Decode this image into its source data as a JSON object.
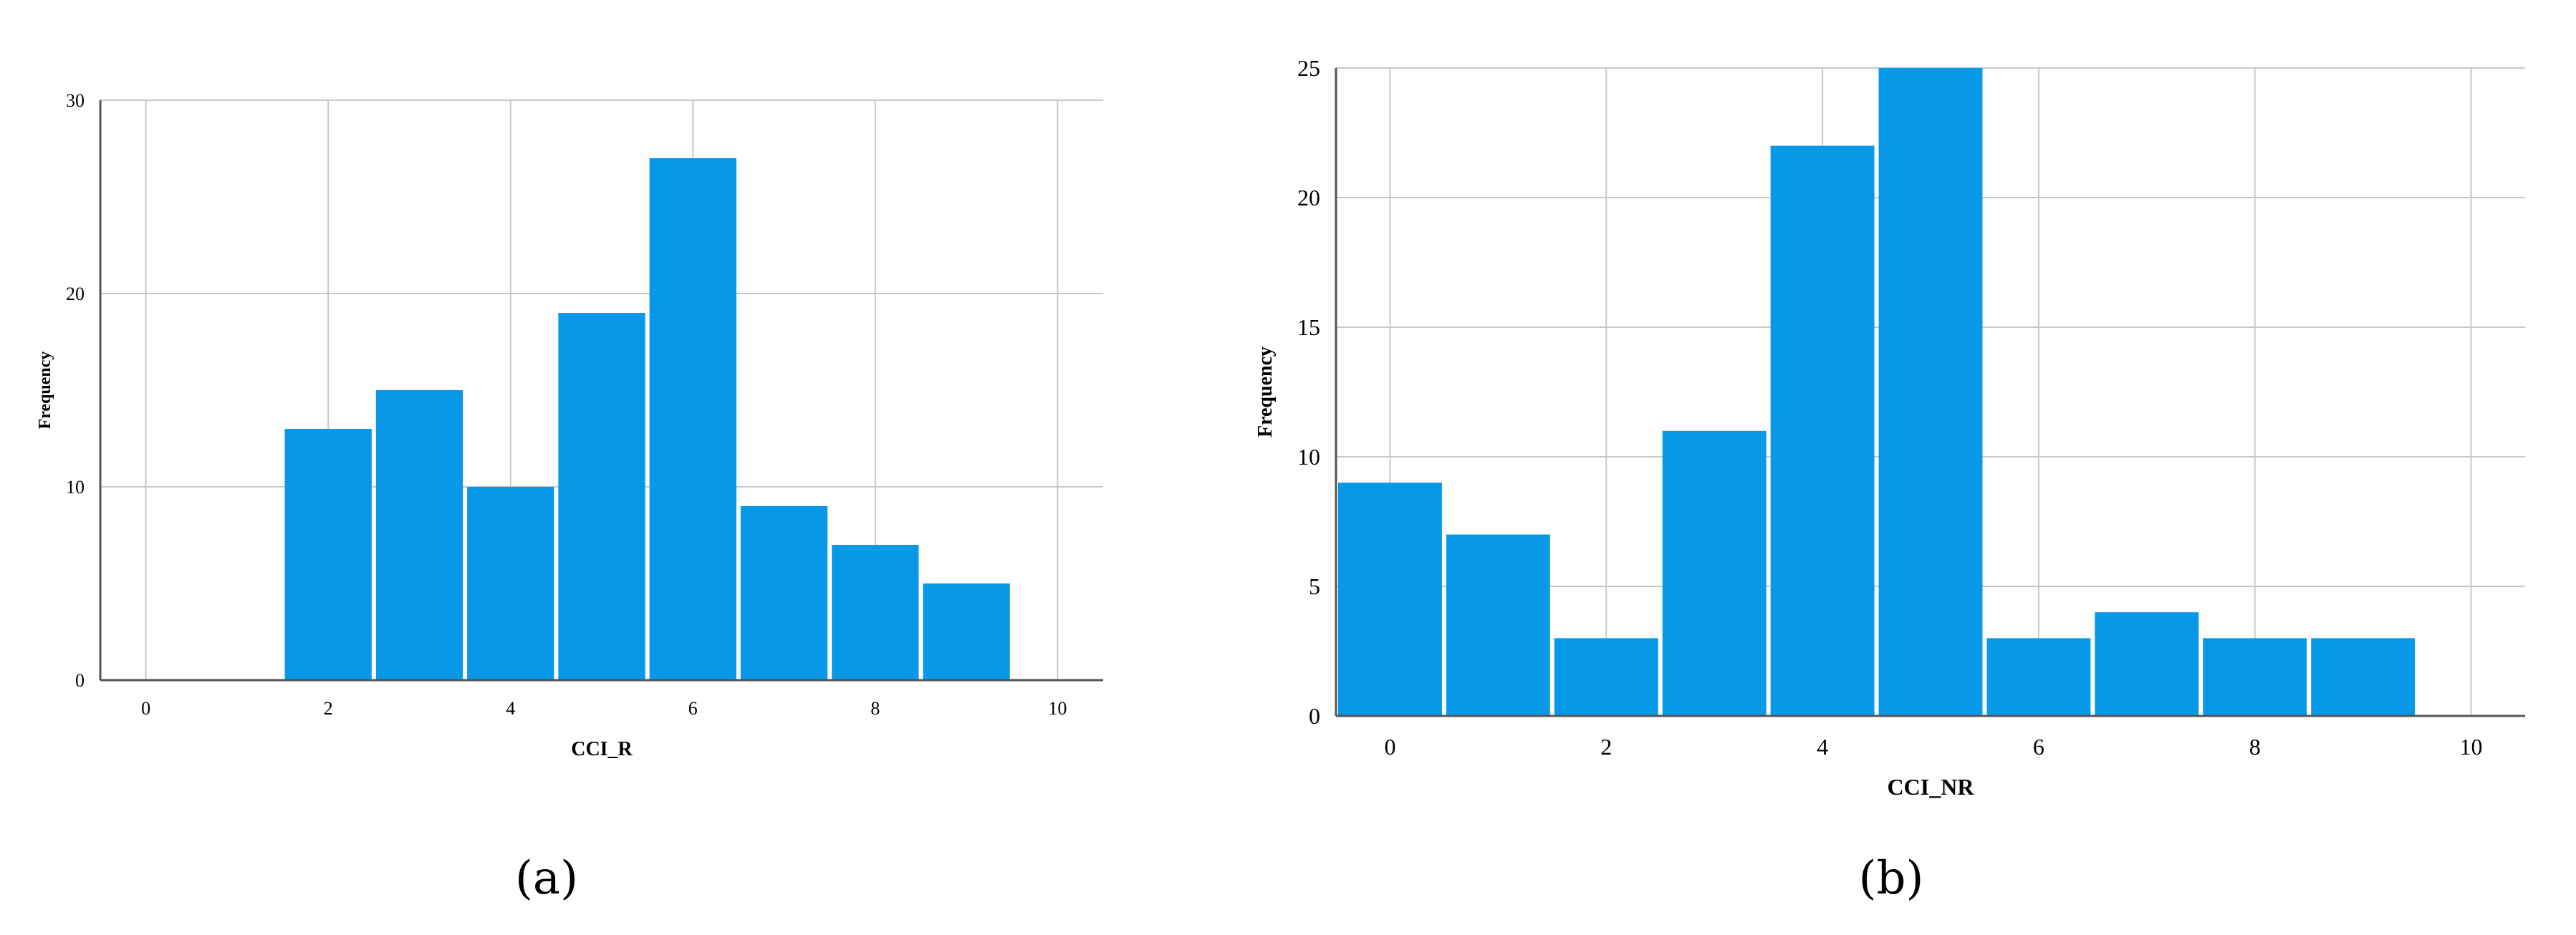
{
  "figure": {
    "captions": [
      "(a)",
      "(b)"
    ]
  },
  "colors": {
    "bar": "#0898E8",
    "grid": "#C8C8C8",
    "axis": "#555555",
    "background": "#FFFFFF"
  },
  "chart_data": [
    {
      "type": "bar",
      "histogram": true,
      "xlabel": "CCI_R",
      "ylabel": "Frequency",
      "xlim": [
        -0.5,
        10.5
      ],
      "ylim": [
        0,
        30
      ],
      "x_ticks": [
        0,
        2,
        4,
        6,
        8,
        10
      ],
      "y_ticks": [
        0,
        10,
        20,
        30
      ],
      "grid": true,
      "bins": [
        2,
        3,
        4,
        5,
        6,
        7,
        8,
        9
      ],
      "values": [
        13,
        15,
        10,
        19,
        27,
        9,
        7,
        5
      ]
    },
    {
      "type": "bar",
      "histogram": true,
      "xlabel": "CCI_NR",
      "ylabel": "Frequency",
      "xlim": [
        -0.5,
        10.5
      ],
      "ylim": [
        0,
        25
      ],
      "x_ticks": [
        0,
        2,
        4,
        6,
        8,
        10
      ],
      "y_ticks": [
        0,
        5,
        10,
        15,
        20,
        25
      ],
      "grid": true,
      "bins": [
        0,
        1,
        2,
        3,
        4,
        5,
        6,
        7,
        8,
        9
      ],
      "values": [
        9,
        7,
        3,
        11,
        22,
        25,
        3,
        4,
        3,
        3
      ]
    }
  ]
}
